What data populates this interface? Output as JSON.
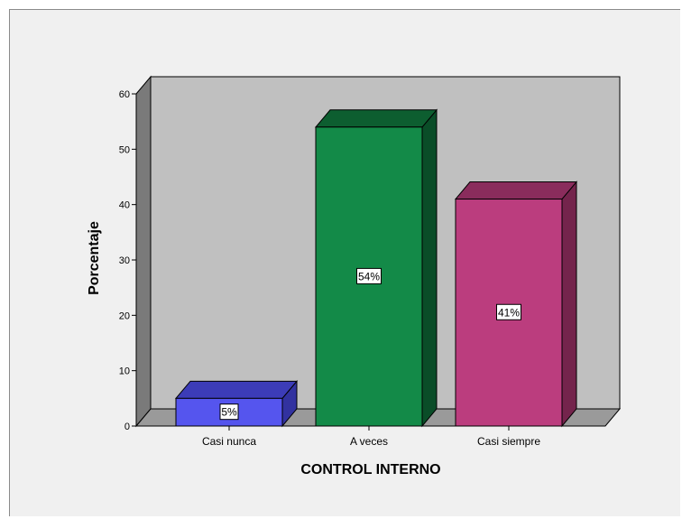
{
  "chart_data": {
    "type": "bar",
    "categories": [
      "Casi nunca",
      "A veces",
      "Casi siempre"
    ],
    "values": [
      5,
      54,
      41
    ],
    "data_labels": [
      "5%",
      "54%",
      "41%"
    ],
    "xlabel": "CONTROL INTERNO",
    "ylabel": "Porcentaje",
    "ylim": [
      0,
      60
    ],
    "yticks": [
      "0",
      "10",
      "20",
      "30",
      "40",
      "50",
      "60"
    ],
    "grid": false,
    "legend": "none",
    "style": "3d",
    "colors": {
      "bars": [
        "#5555ee",
        "#138a48",
        "#bb3d7e"
      ],
      "bar_tops": [
        "#3c3cb8",
        "#0d5e30",
        "#8a2c5c"
      ],
      "bar_sides": [
        "#3232a0",
        "#0a4d28",
        "#74244c"
      ],
      "plot_back": "#c0c0c0",
      "plot_side": "#7a7a7a",
      "plot_floor": "#9a9a9a",
      "background": "#f0f0f0"
    }
  }
}
